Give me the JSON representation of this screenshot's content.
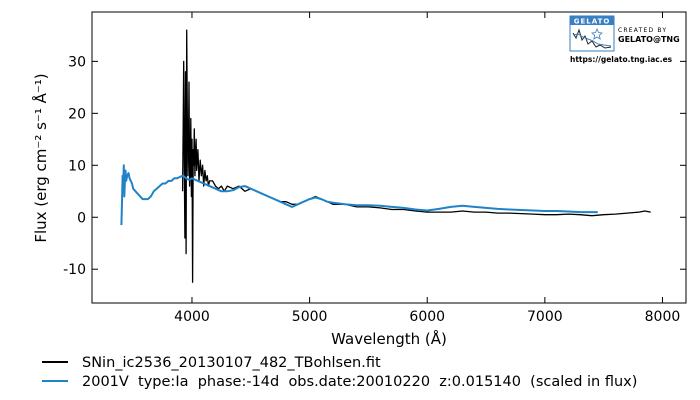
{
  "chart_data": {
    "type": "line",
    "title": "",
    "xlabel": "Wavelength (Å)",
    "ylabel": "Flux (erg cm⁻² s⁻¹ Å⁻¹)",
    "xlim": [
      3150,
      8200
    ],
    "ylim": [
      -16.5,
      39.5
    ],
    "xticks": [
      4000,
      5000,
      6000,
      7000,
      8000
    ],
    "yticks": [
      -10,
      0,
      10,
      20,
      30
    ],
    "grid": false,
    "legend_placement": "below plot",
    "colors": {
      "observed": "#000000",
      "template": "#1f83c8"
    },
    "series": [
      {
        "name": "SNin_ic2536_20130107_482_TBohlsen.fit",
        "color": "#000000",
        "x": [
          3920,
          3925,
          3930,
          3935,
          3940,
          3945,
          3950,
          3955,
          3960,
          3965,
          3970,
          3975,
          3980,
          3985,
          3990,
          3995,
          4000,
          4005,
          4010,
          4015,
          4020,
          4025,
          4030,
          4035,
          4040,
          4050,
          4060,
          4070,
          4080,
          4090,
          4100,
          4110,
          4120,
          4130,
          4140,
          4150,
          4175,
          4200,
          4225,
          4250,
          4275,
          4300,
          4350,
          4400,
          4450,
          4500,
          4550,
          4600,
          4650,
          4700,
          4750,
          4800,
          4850,
          4900,
          4950,
          5000,
          5050,
          5100,
          5150,
          5200,
          5300,
          5400,
          5500,
          5600,
          5700,
          5800,
          5900,
          6000,
          6100,
          6200,
          6300,
          6400,
          6500,
          6600,
          6700,
          6800,
          6900,
          7000,
          7100,
          7200,
          7300,
          7400,
          7500,
          7600,
          7700,
          7800,
          7850,
          7900
        ],
        "y": [
          5,
          18,
          30,
          10,
          -4,
          28,
          -7,
          36,
          20,
          8,
          14,
          26,
          6,
          9,
          19,
          4,
          15,
          -12.5,
          13,
          10,
          17,
          8,
          12,
          15,
          9,
          13,
          7,
          11,
          8,
          10,
          6,
          9,
          7,
          8,
          6,
          7,
          7,
          6,
          5.5,
          6,
          5,
          6,
          5.5,
          6,
          5,
          5.5,
          5,
          4.5,
          4,
          3.5,
          3,
          3,
          2.5,
          2.5,
          3,
          3.5,
          4,
          3.5,
          3,
          2.5,
          2.5,
          2,
          2,
          1.8,
          1.5,
          1.5,
          1.2,
          1,
          1,
          1,
          1.2,
          1,
          1,
          0.8,
          0.8,
          0.7,
          0.6,
          0.5,
          0.5,
          0.6,
          0.5,
          0.3,
          0.5,
          0.6,
          0.8,
          1,
          1.2,
          1
        ]
      },
      {
        "name": "2001V  type:Ia  phase:-14d  obs.date:20010220  z:0.015140  (scaled in flux)",
        "color": "#1f83c8",
        "x": [
          3400,
          3405,
          3410,
          3415,
          3420,
          3425,
          3430,
          3435,
          3440,
          3450,
          3460,
          3470,
          3480,
          3490,
          3500,
          3520,
          3540,
          3560,
          3580,
          3600,
          3625,
          3650,
          3675,
          3700,
          3725,
          3750,
          3775,
          3800,
          3825,
          3850,
          3875,
          3900,
          3925,
          3950,
          3975,
          4000,
          4050,
          4100,
          4150,
          4200,
          4250,
          4300,
          4350,
          4400,
          4450,
          4500,
          4550,
          4600,
          4650,
          4700,
          4750,
          4800,
          4850,
          4900,
          4950,
          5000,
          5050,
          5100,
          5150,
          5200,
          5300,
          5400,
          5500,
          5600,
          5700,
          5800,
          5900,
          6000,
          6100,
          6200,
          6300,
          6400,
          6500,
          6600,
          6700,
          6800,
          6900,
          7000,
          7100,
          7200,
          7300,
          7400,
          7450
        ],
        "y": [
          -1.5,
          3,
          8,
          6,
          10,
          4,
          7,
          9,
          7,
          8,
          8.5,
          7.5,
          7,
          6.5,
          5.5,
          5,
          4.5,
          4,
          3.5,
          3.5,
          3.5,
          4,
          5,
          5.5,
          6,
          6.5,
          6.5,
          7,
          7,
          7.5,
          7.5,
          7.8,
          8,
          7.5,
          7.2,
          7.5,
          7,
          6.5,
          6,
          5.5,
          5,
          5,
          5.2,
          5.8,
          6,
          5.5,
          5,
          4.5,
          4,
          3.5,
          3,
          2.5,
          2,
          2.5,
          3,
          3.5,
          3.8,
          3.5,
          3,
          2.8,
          2.5,
          2.3,
          2.3,
          2.2,
          2,
          1.8,
          1.5,
          1.3,
          1.6,
          2,
          2.2,
          2,
          1.8,
          1.6,
          1.5,
          1.4,
          1.3,
          1.2,
          1.2,
          1.1,
          1,
          1,
          1
        ]
      }
    ]
  },
  "logo": {
    "badge": "GELATO",
    "line1": "CREATED BY",
    "line2": "GELATO@TNG",
    "url": "https://gelato.tng.iac.es"
  }
}
